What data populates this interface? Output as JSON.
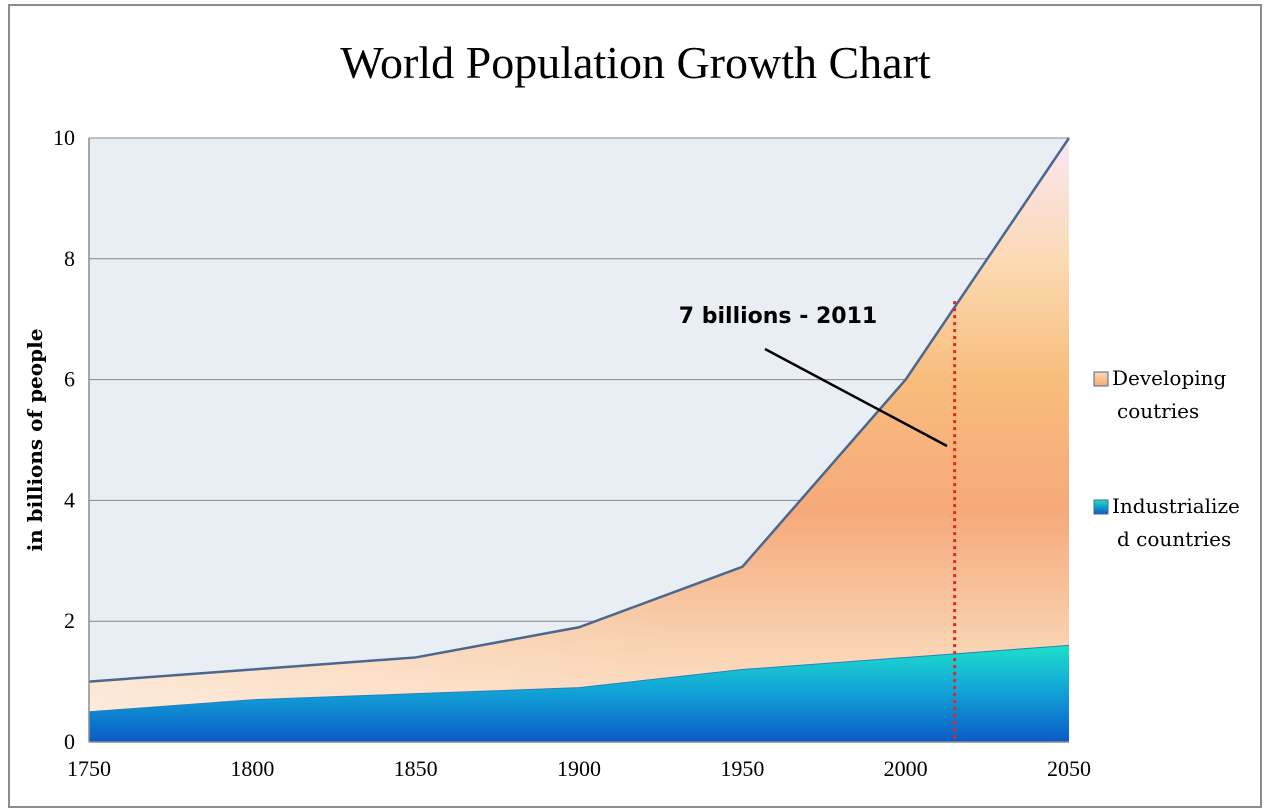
{
  "chart_data": {
    "type": "area",
    "title": "World Population Growth Chart",
    "xlabel": "",
    "ylabel": "in billions of people",
    "x": [
      1750,
      1800,
      1850,
      1900,
      1950,
      2000,
      2050
    ],
    "x_ticks": [
      "1750",
      "1800",
      "1850",
      "1900",
      "1950",
      "2000",
      "2050"
    ],
    "y_ticks": [
      "0",
      "2",
      "4",
      "6",
      "8",
      "10"
    ],
    "xlim": [
      1750,
      2050
    ],
    "ylim": [
      0,
      10
    ],
    "stacked": true,
    "grid": true,
    "legend_position": "right",
    "series": [
      {
        "name": "Industrialize d countries",
        "legend_lines": [
          "Industrialize",
          "d countries"
        ],
        "values": [
          0.5,
          0.7,
          0.8,
          0.9,
          1.2,
          1.4,
          1.6
        ],
        "color": "#1a8fd0"
      },
      {
        "name": "Developing coutries",
        "legend_lines": [
          "Developing",
          "coutries"
        ],
        "values": [
          0.5,
          0.5,
          0.6,
          1.0,
          1.7,
          4.6,
          8.4
        ],
        "color": "#f5a878"
      }
    ],
    "total": [
      1.0,
      1.2,
      1.4,
      1.9,
      2.9,
      6.0,
      10.0
    ],
    "annotation": {
      "text": "7 billions - 2011",
      "x": 2015,
      "y": 7.3
    },
    "colors": {
      "plot_bg": "#e9edf4",
      "outline": "#4a6790",
      "marker_line": "#e8241c",
      "grid": "#888888"
    }
  }
}
